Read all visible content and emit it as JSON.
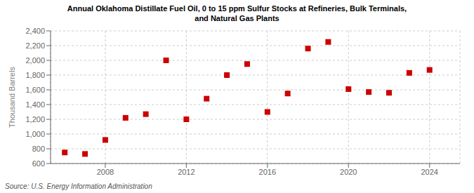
{
  "chart_data": {
    "type": "scatter",
    "title": "Annual Oklahoma Distillate Fuel Oil, 0 to 15 ppm Sulfur Stocks at Refineries, Bulk Terminals,\nand Natural Gas Plants",
    "ylabel": "Thousand Barrels",
    "source": "Source: U.S. Energy Information Administration",
    "x": [
      2006,
      2007,
      2008,
      2009,
      2010,
      2011,
      2012,
      2013,
      2014,
      2015,
      2016,
      2017,
      2018,
      2019,
      2020,
      2021,
      2022,
      2023,
      2024
    ],
    "values": [
      750,
      730,
      920,
      1220,
      1270,
      2000,
      1200,
      1480,
      1800,
      1950,
      1300,
      1550,
      2160,
      2250,
      1610,
      1570,
      1560,
      1830,
      1870
    ],
    "color": "#cc0000",
    "marker": "square",
    "xlim": [
      2005.3,
      2025.5
    ],
    "xticks": [
      2008,
      2012,
      2016,
      2020,
      2024
    ],
    "ylim": [
      600,
      2400
    ],
    "yticks": [
      600,
      800,
      {
        "value": 1000,
        "label": "1,000"
      },
      {
        "value": 1200,
        "label": "1,200"
      },
      {
        "value": 1400,
        "label": "1,400"
      },
      {
        "value": 1600,
        "label": "1,600"
      },
      {
        "value": 1800,
        "label": "1,800"
      },
      {
        "value": 2000,
        "label": "2,000"
      },
      {
        "value": 2200,
        "label": "2,200"
      },
      {
        "value": 2400,
        "label": "2,400"
      }
    ],
    "grid": true
  }
}
